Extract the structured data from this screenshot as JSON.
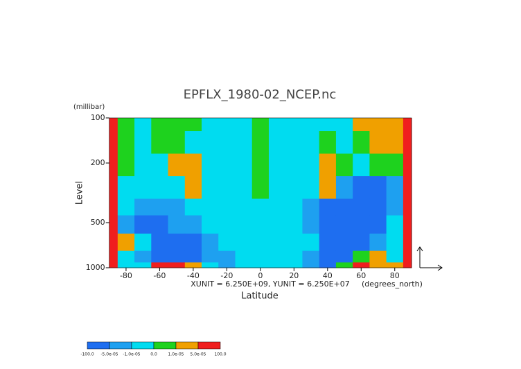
{
  "chart_data": {
    "type": "contour",
    "title": "EPFLX_1980-02_NCEP.nc",
    "x_label": "Latitude",
    "y_label": "Level",
    "y_unit": "(millibar)",
    "x_unit": "(degrees_north)",
    "annotation": "XUNIT = 6.250E+09, YUNIT = 6.250E+07",
    "x": [
      -90,
      -80,
      -70,
      -60,
      -50,
      -40,
      -30,
      -20,
      -10,
      0,
      10,
      20,
      30,
      40,
      50,
      60,
      70,
      80,
      90
    ],
    "levels": [
      100,
      150,
      200,
      300,
      400,
      500,
      700,
      850,
      1000
    ],
    "z": [
      [
        7e-05,
        5e-06,
        -5e-06,
        5e-06,
        5e-06,
        5e-06,
        -5e-06,
        -5e-06,
        -5e-06,
        5e-06,
        -5e-06,
        -5e-06,
        -5e-06,
        -5e-06,
        -5e-06,
        3e-05,
        3e-05,
        3e-05,
        7e-05
      ],
      [
        7e-05,
        5e-06,
        -5e-06,
        5e-06,
        5e-06,
        -5e-06,
        -5e-06,
        -5e-06,
        -5e-06,
        5e-06,
        -5e-06,
        -5e-06,
        -5e-06,
        5e-06,
        -5e-06,
        5e-06,
        3e-05,
        3e-05,
        7e-05
      ],
      [
        7e-05,
        5e-06,
        -5e-06,
        -5e-06,
        3e-05,
        3e-05,
        -5e-06,
        -5e-06,
        -5e-06,
        5e-06,
        -5e-06,
        -5e-06,
        -5e-06,
        3e-05,
        5e-06,
        -5e-06,
        5e-06,
        5e-06,
        7e-05
      ],
      [
        7e-05,
        -5e-06,
        -5e-06,
        -5e-06,
        -5e-06,
        3e-05,
        -5e-06,
        -5e-06,
        -5e-06,
        5e-06,
        -5e-06,
        -5e-06,
        -5e-06,
        3e-05,
        -3e-05,
        -7e-05,
        -7e-05,
        -3e-05,
        7e-05
      ],
      [
        7e-05,
        -5e-06,
        -3e-05,
        -3e-05,
        -3e-05,
        -5e-06,
        -5e-06,
        -5e-06,
        -5e-06,
        -5e-06,
        -5e-06,
        -5e-06,
        -3e-05,
        -7e-05,
        -7e-05,
        -7e-05,
        -7e-05,
        -3e-05,
        7e-05
      ],
      [
        7e-05,
        -3e-05,
        -7e-05,
        -7e-05,
        -3e-05,
        -3e-05,
        -5e-06,
        -5e-06,
        -5e-06,
        -5e-06,
        -5e-06,
        -5e-06,
        -3e-05,
        -7e-05,
        -7e-05,
        -7e-05,
        -7e-05,
        -5e-06,
        7e-05
      ],
      [
        7e-05,
        3e-05,
        -5e-06,
        -7e-05,
        -7e-05,
        -7e-05,
        -3e-05,
        -5e-06,
        -5e-06,
        -5e-06,
        -5e-06,
        -5e-06,
        -5e-06,
        -7e-05,
        -7e-05,
        -7e-05,
        -3e-05,
        -5e-06,
        7e-05
      ],
      [
        7e-05,
        -5e-06,
        -3e-05,
        -7e-05,
        -7e-05,
        -7e-05,
        -3e-05,
        -3e-05,
        -5e-06,
        -5e-06,
        -5e-06,
        -5e-06,
        -3e-05,
        -7e-05,
        -7e-05,
        5e-06,
        3e-05,
        -5e-06,
        7e-05
      ],
      [
        7e-05,
        -5e-06,
        -5e-06,
        7e-05,
        7e-05,
        3e-05,
        -5e-06,
        -3e-05,
        -5e-06,
        -5e-06,
        -5e-06,
        -5e-06,
        -3e-05,
        -7e-05,
        5e-06,
        7e-05,
        3e-05,
        3e-05,
        7e-05
      ]
    ],
    "xlim": [
      -90,
      90
    ],
    "ylim": [
      100,
      1000
    ],
    "y_log": true,
    "y_inverted": true,
    "xticks": [
      -80,
      -60,
      -40,
      -20,
      0,
      20,
      40,
      60,
      80
    ],
    "yticks": [
      100,
      200,
      500,
      1000
    ],
    "colorbar_ticks": [
      {
        "value": -100,
        "label": "-100.0"
      },
      {
        "value": -5e-05,
        "label": "-5.0e-05"
      },
      {
        "value": -1e-05,
        "label": "-1.0e-05"
      },
      {
        "value": 0,
        "label": "0.0"
      },
      {
        "value": 1e-05,
        "label": "1.0e-05"
      },
      {
        "value": 5e-05,
        "label": "5.0e-05"
      },
      {
        "value": 100,
        "label": "100.0"
      }
    ],
    "colors": [
      "#1e6ef0",
      "#1ea0f0",
      "#00dcf0",
      "#1ed21e",
      "#f0a000",
      "#f01e1e"
    ]
  }
}
